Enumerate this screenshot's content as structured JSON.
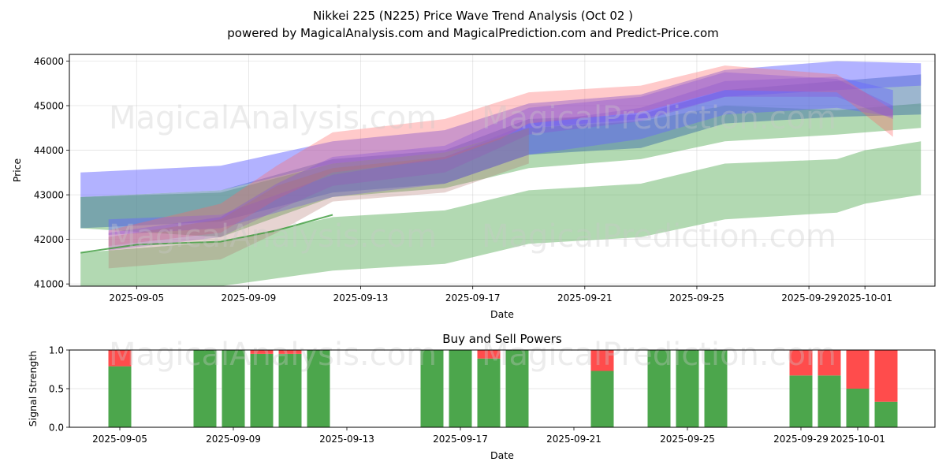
{
  "header": {
    "title": "Nikkei 225 (N225) Price Wave Trend Analysis (Oct 02 )",
    "subtitle": "powered by MagicalAnalysis.com and MagicalPrediction.com and Predict-Price.com"
  },
  "watermarks": {
    "left": "MagicalAnalysis.com",
    "right": "MagicalPrediction.com"
  },
  "colors": {
    "buy": "#4ca64c",
    "sell": "#ff4c4c",
    "band_blue": "#6666ff",
    "band_red": "#ff6666",
    "band_green": "#66b366",
    "band_steel": "#4a7aa8"
  },
  "chart_data": [
    {
      "type": "area",
      "title": "",
      "xlabel": "Date",
      "ylabel": "Price",
      "xlim": [
        "2025-09-02.6",
        "2025-10-03.5"
      ],
      "ylim": [
        40950,
        46150
      ],
      "grid": true,
      "x_ticks": [
        "2025-09-05",
        "2025-09-09",
        "2025-09-13",
        "2025-09-17",
        "2025-09-21",
        "2025-09-25",
        "2025-09-29",
        "2025-10-01"
      ],
      "y_ticks": [
        41000,
        42000,
        43000,
        44000,
        45000,
        46000
      ],
      "bands": [
        {
          "name": "green-low",
          "color": "green",
          "opacity": 0.5,
          "x": [
            "2025-09-03",
            "2025-09-08",
            "2025-09-12",
            "2025-09-16",
            "2025-09-19",
            "2025-09-23",
            "2025-09-26",
            "2025-09-30",
            "2025-10-01",
            "2025-10-03"
          ],
          "lower": [
            40800,
            40950,
            41300,
            41450,
            41900,
            42050,
            42450,
            42600,
            42800,
            43000
          ],
          "upper": [
            41700,
            41950,
            42500,
            42650,
            43100,
            43250,
            43700,
            43800,
            44000,
            44200
          ]
        },
        {
          "name": "green-mid",
          "color": "green",
          "opacity": 0.5,
          "x": [
            "2025-09-03",
            "2025-09-08",
            "2025-09-12",
            "2025-09-16",
            "2025-09-19",
            "2025-09-23",
            "2025-09-26",
            "2025-09-30",
            "2025-10-03"
          ],
          "lower": [
            42250,
            42050,
            42950,
            43150,
            43600,
            43800,
            44200,
            44350,
            44500
          ],
          "upper": [
            42950,
            43050,
            43700,
            43950,
            44500,
            44650,
            45000,
            44900,
            45050
          ]
        },
        {
          "name": "steel-main",
          "color": "steel",
          "opacity": 0.55,
          "x": [
            "2025-09-03",
            "2025-09-08",
            "2025-09-12",
            "2025-09-16",
            "2025-09-19",
            "2025-09-23",
            "2025-09-26",
            "2025-09-30",
            "2025-10-03"
          ],
          "lower": [
            42250,
            42400,
            43050,
            43250,
            43900,
            44050,
            44600,
            44750,
            44800
          ],
          "upper": [
            42950,
            43100,
            43800,
            44000,
            44700,
            44800,
            45350,
            45550,
            45700
          ]
        },
        {
          "name": "blue-wide",
          "color": "blue",
          "opacity": 0.5,
          "x": [
            "2025-09-03",
            "2025-09-08",
            "2025-09-12",
            "2025-09-16",
            "2025-09-19",
            "2025-09-23",
            "2025-09-26",
            "2025-09-30",
            "2025-10-03"
          ],
          "lower": [
            42950,
            43100,
            43700,
            43950,
            44500,
            44700,
            45200,
            45350,
            45450
          ],
          "upper": [
            43500,
            43650,
            44200,
            44450,
            45050,
            45250,
            45800,
            46000,
            45950
          ]
        },
        {
          "name": "blue-inner",
          "color": "blue",
          "opacity": 0.45,
          "x": [
            "2025-09-04",
            "2025-09-08",
            "2025-09-12",
            "2025-09-16",
            "2025-09-19",
            "2025-09-23",
            "2025-09-26",
            "2025-09-30",
            "2025-10-02"
          ],
          "lower": [
            42100,
            42250,
            42950,
            43250,
            43900,
            44250,
            44800,
            44950,
            44750
          ],
          "upper": [
            42450,
            42550,
            43450,
            43850,
            44600,
            44950,
            45550,
            45650,
            45350
          ]
        },
        {
          "name": "red-upper",
          "color": "red",
          "opacity": 0.35,
          "x": [
            "2025-09-04",
            "2025-09-08",
            "2025-09-10",
            "2025-09-12",
            "2025-09-16",
            "2025-09-18",
            "2025-09-19",
            "2025-09-23",
            "2025-09-26",
            "2025-09-30",
            "2025-10-02"
          ],
          "lower": [
            41850,
            42150,
            42900,
            43500,
            43800,
            44250,
            44600,
            44850,
            45350,
            45300,
            44300
          ],
          "upper": [
            42200,
            42800,
            43650,
            44400,
            44700,
            45100,
            45300,
            45450,
            45900,
            45700,
            44900
          ]
        },
        {
          "name": "purple-core",
          "color": "purple",
          "opacity": 0.35,
          "x": [
            "2025-09-04",
            "2025-09-08",
            "2025-09-10",
            "2025-09-12",
            "2025-09-16",
            "2025-09-19",
            "2025-09-23",
            "2025-09-26",
            "2025-09-30",
            "2025-10-02"
          ],
          "lower": [
            41750,
            42050,
            42650,
            43200,
            43500,
            44350,
            44650,
            45200,
            45200,
            44700
          ],
          "upper": [
            42150,
            42500,
            43250,
            43850,
            44100,
            44950,
            45200,
            45750,
            45600,
            45000
          ]
        },
        {
          "name": "brown-early",
          "color": "brown",
          "opacity": 0.3,
          "x": [
            "2025-09-04",
            "2025-09-08",
            "2025-09-10",
            "2025-09-12",
            "2025-09-16",
            "2025-09-19"
          ],
          "lower": [
            41350,
            41550,
            42150,
            42850,
            43050,
            43700
          ],
          "upper": [
            42050,
            42450,
            43200,
            43600,
            43850,
            44500
          ]
        }
      ],
      "lines": [
        {
          "name": "green-trend",
          "color": "green",
          "x": [
            "2025-09-03",
            "2025-09-05",
            "2025-09-08",
            "2025-09-10",
            "2025-09-12"
          ],
          "y": [
            41700,
            41880,
            41950,
            42200,
            42550
          ]
        }
      ]
    },
    {
      "type": "bar",
      "title": "Buy and Sell Powers",
      "xlabel": "Date",
      "ylabel": "Signal Strength",
      "ylim": [
        0.0,
        1.0
      ],
      "grid": true,
      "x_ticks": [
        "2025-09-05",
        "2025-09-09",
        "2025-09-13",
        "2025-09-17",
        "2025-09-21",
        "2025-09-25",
        "2025-09-29",
        "2025-10-01"
      ],
      "y_ticks": [
        "0.0",
        "0.5",
        "1.0"
      ],
      "categories": [
        "2025-09-05",
        "2025-09-08",
        "2025-09-09",
        "2025-09-10",
        "2025-09-11",
        "2025-09-12",
        "2025-09-16",
        "2025-09-17",
        "2025-09-18",
        "2025-09-19",
        "2025-09-22",
        "2025-09-24",
        "2025-09-25",
        "2025-09-26",
        "2025-09-29",
        "2025-09-30",
        "2025-10-01",
        "2025-10-02"
      ],
      "series": [
        {
          "name": "Buy",
          "values": [
            0.79,
            1.0,
            1.0,
            0.95,
            0.95,
            1.0,
            1.0,
            1.0,
            0.89,
            1.0,
            0.73,
            1.0,
            1.0,
            1.0,
            0.67,
            0.67,
            0.5,
            0.33
          ]
        },
        {
          "name": "Sell",
          "values": [
            0.21,
            0.0,
            0.0,
            0.05,
            0.05,
            0.0,
            0.0,
            0.0,
            0.11,
            0.0,
            0.27,
            0.0,
            0.0,
            0.0,
            0.33,
            0.33,
            0.5,
            0.67
          ]
        }
      ]
    }
  ]
}
